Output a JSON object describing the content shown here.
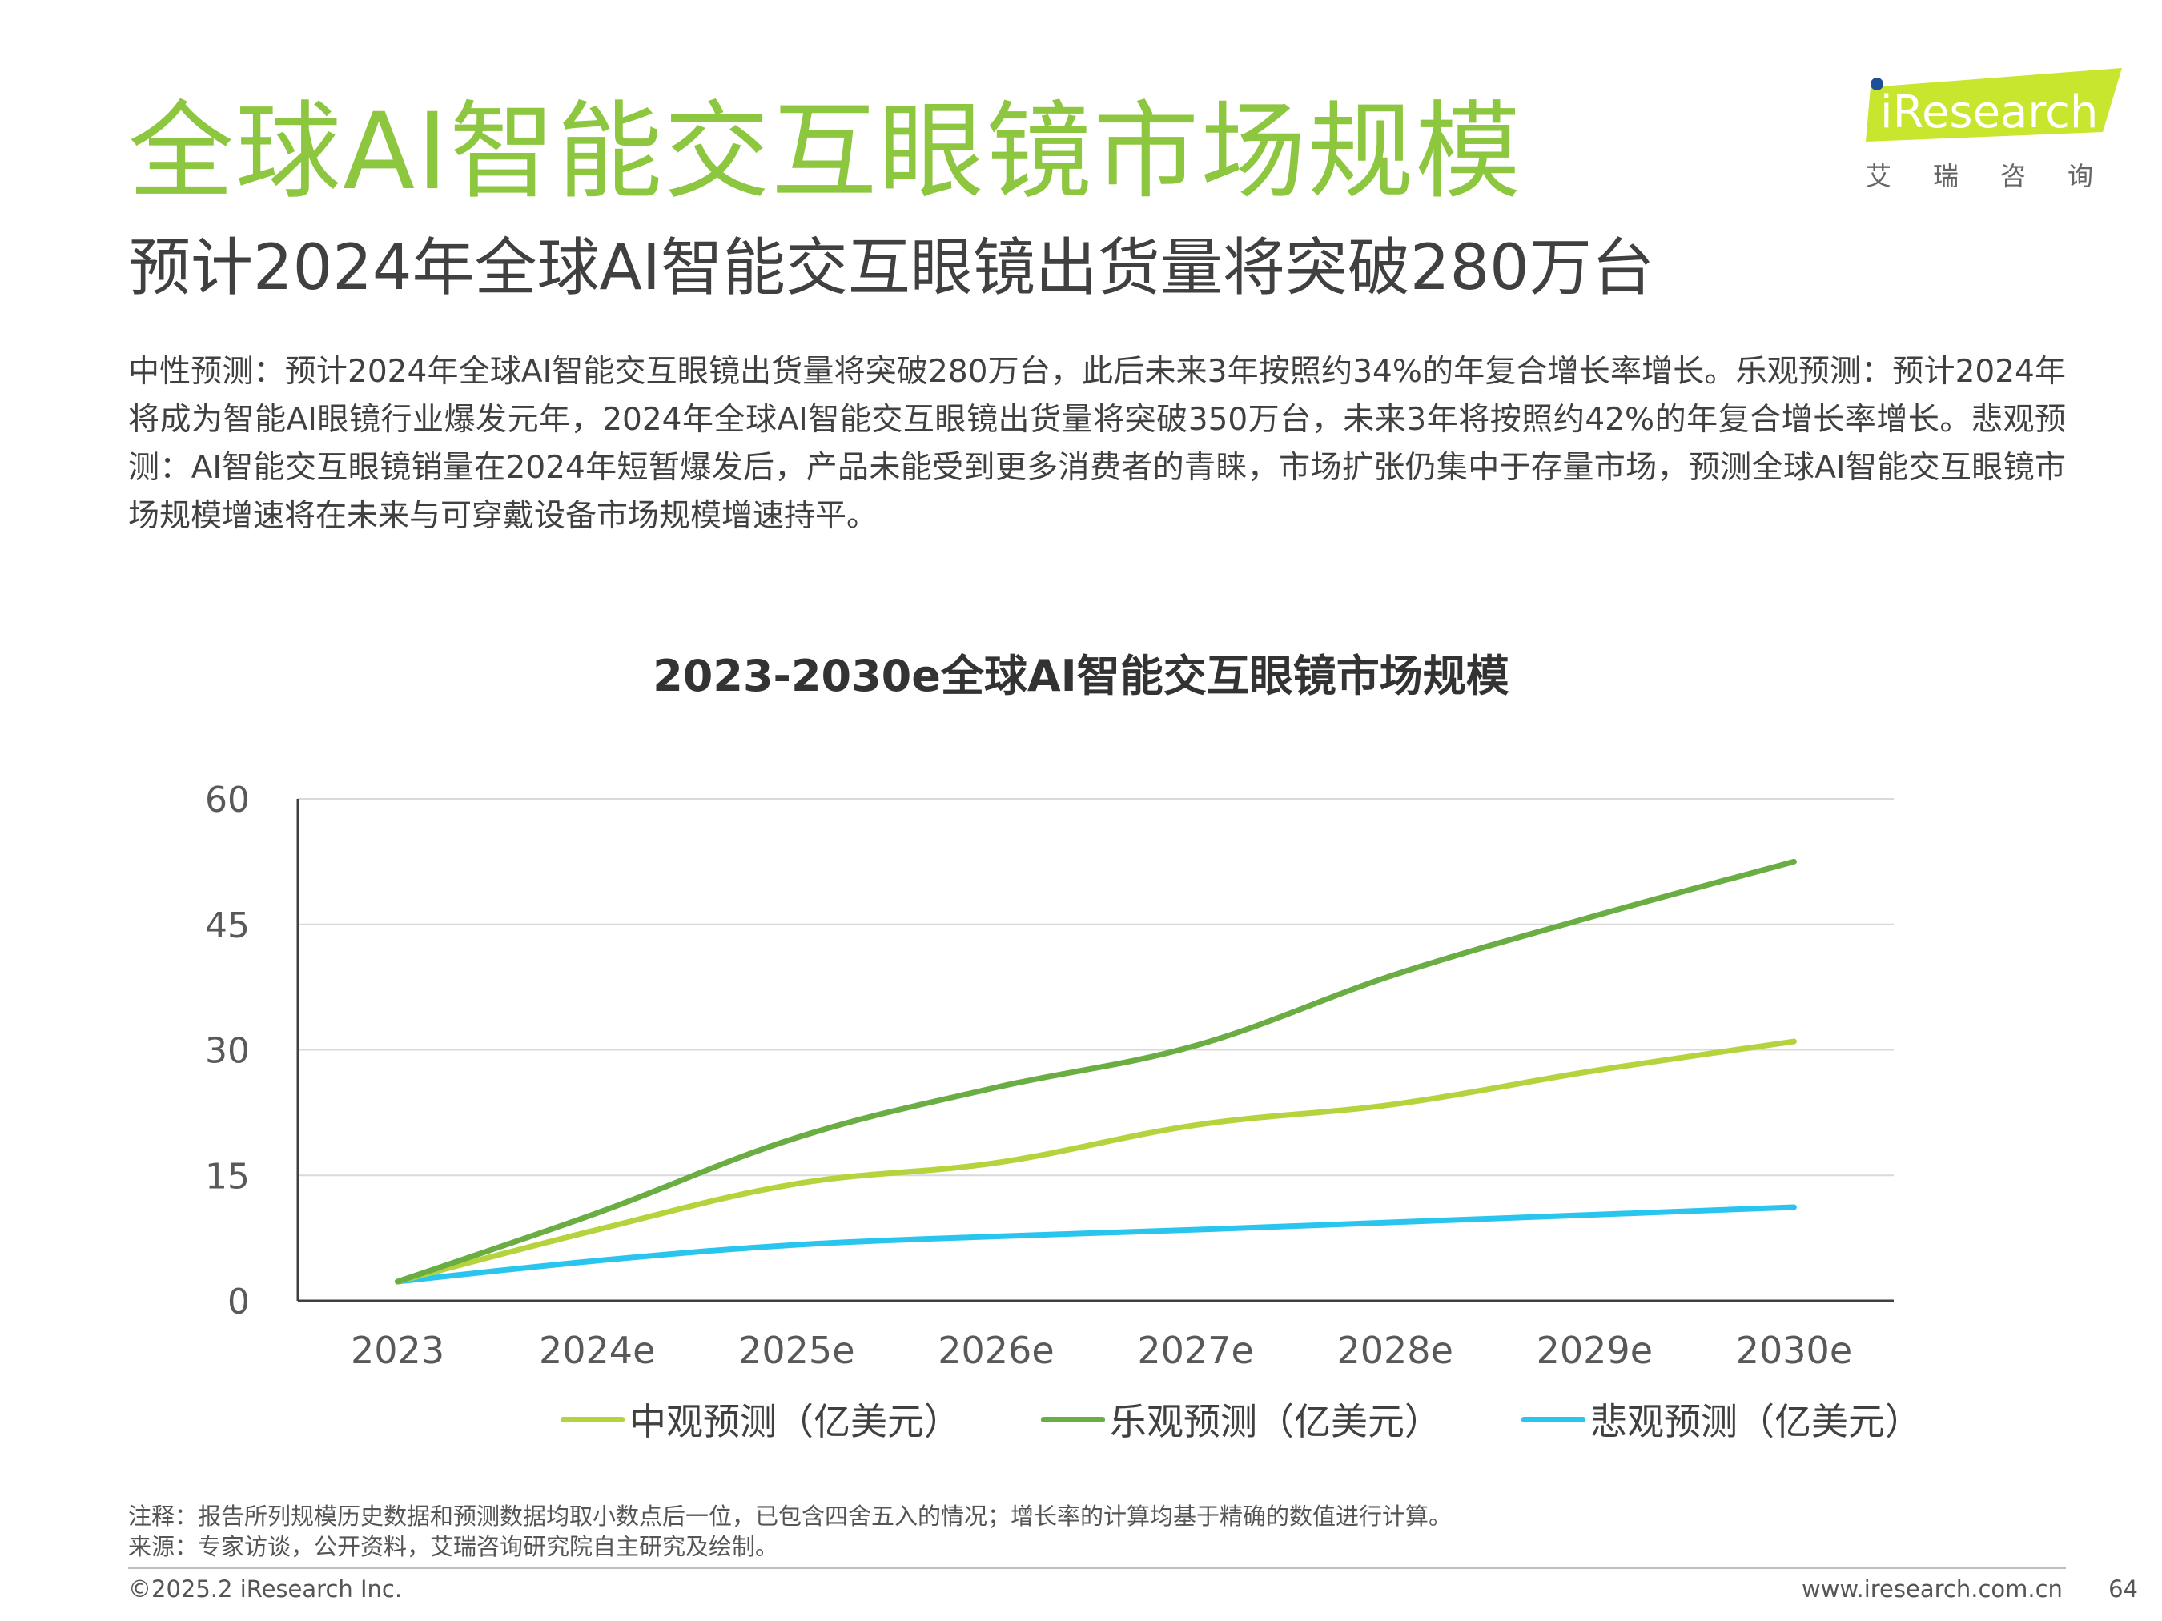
{
  "header": {
    "title": "全球AI智能交互眼镜市场规模",
    "subtitle": "预计2024年全球AI智能交互眼镜出货量将突破280万台",
    "body": "中性预测：预计2024年全球AI智能交互眼镜出货量将突破280万台，此后未来3年按照约34%的年复合增长率增长。乐观预测：预计2024年将成为智能AI眼镜行业爆发元年，2024年全球AI智能交互眼镜出货量将突破350万台，未来3年将按照约42%的年复合增长率增长。悲观预测：AI智能交互眼镜销量在2024年短暂爆发后，产品未能受到更多消费者的青睐，市场扩张仍集中于存量市场，预测全球AI智能交互眼镜市场规模增速将在未来与可穿戴设备市场规模增速持平。"
  },
  "logo": {
    "text": "iResearch",
    "cn": "艾瑞咨询",
    "color": "#c8e62e"
  },
  "chart_data": {
    "type": "line",
    "title": "2023-2030e全球AI智能交互眼镜市场规模",
    "categories": [
      "2023",
      "2024e",
      "2025e",
      "2026e",
      "2027e",
      "2028e",
      "2029e",
      "2030e"
    ],
    "ylim": [
      0,
      60
    ],
    "yticks": [
      0,
      15,
      30,
      45,
      60
    ],
    "grid": true,
    "legend_position": "bottom",
    "series": [
      {
        "name": "中观预测（亿美元）",
        "color": "#b5d33d",
        "values": [
          2.3,
          8.5,
          14.0,
          16.5,
          21.0,
          23.5,
          27.5,
          31.0
        ]
      },
      {
        "name": "乐观预测（亿美元）",
        "color": "#6aad42",
        "values": [
          2.3,
          10.5,
          19.5,
          25.5,
          30.5,
          39.0,
          46.0,
          52.5
        ]
      },
      {
        "name": "悲观预测（亿美元）",
        "color": "#29c5ee",
        "values": [
          2.3,
          4.8,
          6.7,
          7.7,
          8.5,
          9.4,
          10.3,
          11.2
        ]
      }
    ]
  },
  "notes": {
    "note": "注释：报告所列规模历史数据和预测数据均取小数点后一位，已包含四舍五入的情况；增长率的计算均基于精确的数值进行计算。",
    "source": "来源：专家访谈，公开资料，艾瑞咨询研究院自主研究及绘制。"
  },
  "footer": {
    "copyright": "©2025.2 iResearch Inc.",
    "website": "www.iresearch.com.cn",
    "page": "64"
  }
}
